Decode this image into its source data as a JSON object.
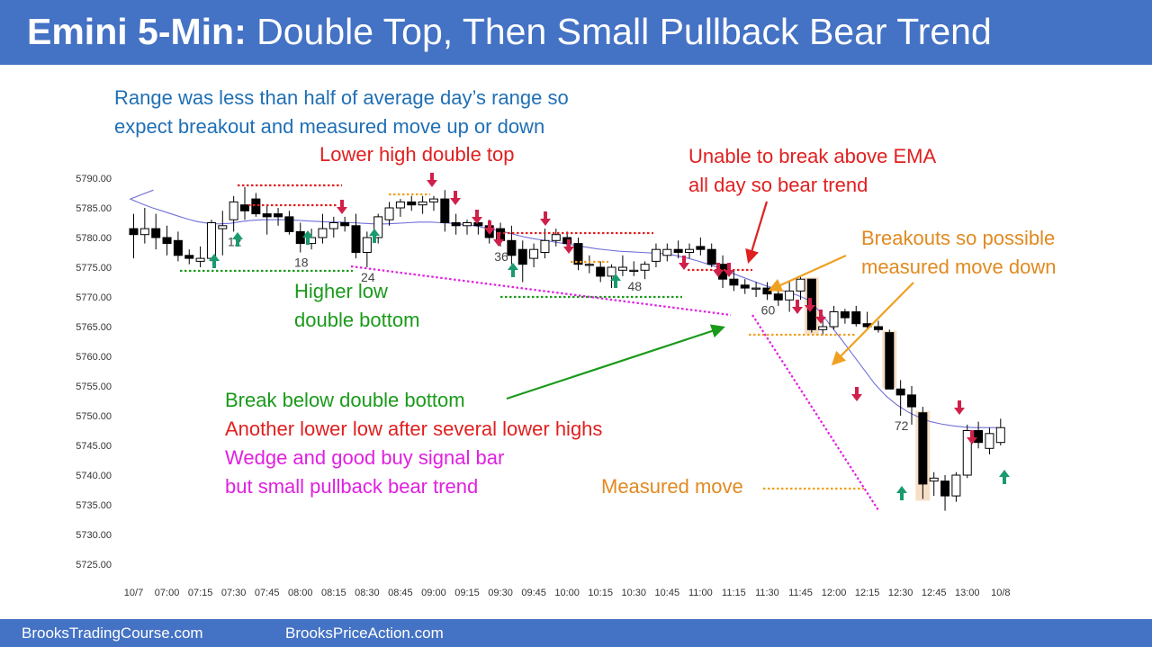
{
  "header": {
    "title_bold": "Emini 5-Min:",
    "title_rest": " Double Top, Then Small Pullback Bear Trend",
    "bg_color": "#4472c4"
  },
  "footer": {
    "left_text": "BrooksTradingCourse.com",
    "right_text": "BrooksPriceAction.com"
  },
  "annotations": {
    "range_note_1": "Range was less than half of average day’s range so",
    "range_note_2": "expect breakout and measured move up or down",
    "lower_high": "Lower high double top",
    "unable_1": "Unable to break above EMA",
    "unable_2": "all day so bear trend",
    "breakouts_1": "Breakouts so possible",
    "breakouts_2": "measured move down",
    "higher_low_1": "Higher low",
    "higher_low_2": "double bottom",
    "break_below": "Break below double bottom",
    "lower_low": "Another lower low after several lower highs",
    "wedge_1": "Wedge and good buy signal bar",
    "wedge_2": "but small pullback bear trend",
    "measured_move": "Measured move"
  },
  "chart_data": {
    "type": "candlestick",
    "symbol": "Emini",
    "timeframe": "5-Min",
    "ylim": [
      5722.5,
      5792.5
    ],
    "yticks": [
      5790,
      5785,
      5780,
      5775,
      5770,
      5765,
      5760,
      5755,
      5750,
      5745,
      5740,
      5735,
      5730,
      5725
    ],
    "ytick_labels": [
      "5790.00",
      "5785.00",
      "5780.00",
      "5775.00",
      "5770.00",
      "5765.00",
      "5760.00",
      "5755.00",
      "5750.00",
      "5745.00",
      "5740.00",
      "5735.00",
      "5730.00",
      "5725.00"
    ],
    "xtick_labels": [
      {
        "bar": 0,
        "label": "10/7"
      },
      {
        "bar": 3,
        "label": "07:00"
      },
      {
        "bar": 6,
        "label": "07:15"
      },
      {
        "bar": 9,
        "label": "07:30"
      },
      {
        "bar": 12,
        "label": "07:45"
      },
      {
        "bar": 15,
        "label": "08:00"
      },
      {
        "bar": 18,
        "label": "08:15"
      },
      {
        "bar": 21,
        "label": "08:30"
      },
      {
        "bar": 24,
        "label": "08:45"
      },
      {
        "bar": 27,
        "label": "09:00"
      },
      {
        "bar": 30,
        "label": "09:15"
      },
      {
        "bar": 33,
        "label": "09:30"
      },
      {
        "bar": 36,
        "label": "09:45"
      },
      {
        "bar": 39,
        "label": "10:00"
      },
      {
        "bar": 42,
        "label": "10:15"
      },
      {
        "bar": 45,
        "label": "10:30"
      },
      {
        "bar": 48,
        "label": "10:45"
      },
      {
        "bar": 51,
        "label": "11:00"
      },
      {
        "bar": 54,
        "label": "11:15"
      },
      {
        "bar": 57,
        "label": "11:30"
      },
      {
        "bar": 60,
        "label": "11:45"
      },
      {
        "bar": 63,
        "label": "12:00"
      },
      {
        "bar": 66,
        "label": "12:15"
      },
      {
        "bar": 69,
        "label": "12:30"
      },
      {
        "bar": 72,
        "label": "12:45"
      },
      {
        "bar": 75,
        "label": "13:00"
      },
      {
        "bar": 78,
        "label": "10/8"
      }
    ],
    "bars": [
      {
        "o": 5781.5,
        "h": 5784.0,
        "l": 5776.5,
        "c": 5780.5
      },
      {
        "o": 5780.5,
        "h": 5785.0,
        "l": 5779.0,
        "c": 5781.5
      },
      {
        "o": 5781.5,
        "h": 5784.0,
        "l": 5778.0,
        "c": 5780.0
      },
      {
        "o": 5780.0,
        "h": 5782.0,
        "l": 5777.0,
        "c": 5779.0
      },
      {
        "o": 5779.5,
        "h": 5781.0,
        "l": 5776.0,
        "c": 5777.0
      },
      {
        "o": 5777.0,
        "h": 5778.0,
        "l": 5775.5,
        "c": 5776.5
      },
      {
        "o": 5776.0,
        "h": 5778.5,
        "l": 5775.0,
        "c": 5776.5
      },
      {
        "o": 5776.5,
        "h": 5783.0,
        "l": 5776.0,
        "c": 5782.5
      },
      {
        "o": 5781.5,
        "h": 5784.5,
        "l": 5777.0,
        "c": 5782.0
      },
      {
        "o": 5783.0,
        "h": 5787.0,
        "l": 5781.0,
        "c": 5786.0
      },
      {
        "o": 5785.5,
        "h": 5788.5,
        "l": 5783.0,
        "c": 5784.5
      },
      {
        "o": 5786.5,
        "h": 5787.5,
        "l": 5783.5,
        "c": 5784.0
      },
      {
        "o": 5784.0,
        "h": 5785.5,
        "l": 5780.5,
        "c": 5783.5
      },
      {
        "o": 5784.0,
        "h": 5785.0,
        "l": 5782.0,
        "c": 5783.5
      },
      {
        "o": 5783.5,
        "h": 5784.5,
        "l": 5780.5,
        "c": 5781.0
      },
      {
        "o": 5781.0,
        "h": 5782.5,
        "l": 5777.5,
        "c": 5779.0
      },
      {
        "o": 5779.0,
        "h": 5781.5,
        "l": 5778.0,
        "c": 5780.0
      },
      {
        "o": 5780.0,
        "h": 5784.0,
        "l": 5779.0,
        "c": 5781.5
      },
      {
        "o": 5781.5,
        "h": 5783.5,
        "l": 5780.0,
        "c": 5782.5
      },
      {
        "o": 5782.5,
        "h": 5783.5,
        "l": 5781.0,
        "c": 5782.0
      },
      {
        "o": 5782.0,
        "h": 5784.0,
        "l": 5776.5,
        "c": 5777.5
      },
      {
        "o": 5777.5,
        "h": 5781.0,
        "l": 5775.0,
        "c": 5780.0
      },
      {
        "o": 5780.0,
        "h": 5784.0,
        "l": 5779.0,
        "c": 5783.5
      },
      {
        "o": 5783.0,
        "h": 5786.0,
        "l": 5782.0,
        "c": 5785.0
      },
      {
        "o": 5785.0,
        "h": 5786.5,
        "l": 5783.5,
        "c": 5786.0
      },
      {
        "o": 5786.0,
        "h": 5787.0,
        "l": 5784.5,
        "c": 5785.5
      },
      {
        "o": 5785.5,
        "h": 5787.0,
        "l": 5784.0,
        "c": 5786.0
      },
      {
        "o": 5786.0,
        "h": 5787.0,
        "l": 5784.5,
        "c": 5786.5
      },
      {
        "o": 5786.5,
        "h": 5788.0,
        "l": 5781.0,
        "c": 5782.5
      },
      {
        "o": 5782.5,
        "h": 5784.0,
        "l": 5780.5,
        "c": 5782.0
      },
      {
        "o": 5782.0,
        "h": 5783.0,
        "l": 5780.5,
        "c": 5782.5
      },
      {
        "o": 5782.5,
        "h": 5783.5,
        "l": 5780.5,
        "c": 5782.0
      },
      {
        "o": 5782.0,
        "h": 5783.0,
        "l": 5779.0,
        "c": 5780.0
      },
      {
        "o": 5781.5,
        "h": 5782.5,
        "l": 5778.5,
        "c": 5779.5
      },
      {
        "o": 5779.5,
        "h": 5782.0,
        "l": 5775.5,
        "c": 5777.0
      },
      {
        "o": 5778.0,
        "h": 5779.5,
        "l": 5772.5,
        "c": 5775.5
      },
      {
        "o": 5776.5,
        "h": 5779.0,
        "l": 5775.0,
        "c": 5778.0
      },
      {
        "o": 5777.5,
        "h": 5781.5,
        "l": 5776.5,
        "c": 5779.5
      },
      {
        "o": 5779.5,
        "h": 5781.5,
        "l": 5778.5,
        "c": 5780.5
      },
      {
        "o": 5780.0,
        "h": 5781.0,
        "l": 5778.0,
        "c": 5779.0
      },
      {
        "o": 5779.0,
        "h": 5780.0,
        "l": 5774.5,
        "c": 5775.5
      },
      {
        "o": 5775.5,
        "h": 5777.0,
        "l": 5774.0,
        "c": 5775.5
      },
      {
        "o": 5775.0,
        "h": 5776.0,
        "l": 5772.5,
        "c": 5773.5
      },
      {
        "o": 5773.5,
        "h": 5775.5,
        "l": 5771.5,
        "c": 5775.0
      },
      {
        "o": 5774.5,
        "h": 5777.0,
        "l": 5773.5,
        "c": 5775.0
      },
      {
        "o": 5774.5,
        "h": 5776.0,
        "l": 5773.5,
        "c": 5774.5
      },
      {
        "o": 5774.5,
        "h": 5776.0,
        "l": 5773.0,
        "c": 5775.5
      },
      {
        "o": 5776.0,
        "h": 5779.0,
        "l": 5775.0,
        "c": 5778.0
      },
      {
        "o": 5777.0,
        "h": 5779.0,
        "l": 5776.0,
        "c": 5778.0
      },
      {
        "o": 5778.0,
        "h": 5779.5,
        "l": 5776.5,
        "c": 5777.5
      },
      {
        "o": 5777.5,
        "h": 5779.0,
        "l": 5776.5,
        "c": 5778.0
      },
      {
        "o": 5778.5,
        "h": 5780.0,
        "l": 5777.0,
        "c": 5778.0
      },
      {
        "o": 5778.0,
        "h": 5779.0,
        "l": 5775.0,
        "c": 5775.5
      },
      {
        "o": 5775.5,
        "h": 5777.0,
        "l": 5771.5,
        "c": 5773.0
      },
      {
        "o": 5773.0,
        "h": 5774.5,
        "l": 5771.0,
        "c": 5772.0
      },
      {
        "o": 5772.0,
        "h": 5773.0,
        "l": 5770.5,
        "c": 5771.5
      },
      {
        "o": 5771.5,
        "h": 5772.5,
        "l": 5770.0,
        "c": 5771.5
      },
      {
        "o": 5771.5,
        "h": 5772.5,
        "l": 5769.5,
        "c": 5770.5
      },
      {
        "o": 5770.5,
        "h": 5772.0,
        "l": 5768.5,
        "c": 5769.5
      },
      {
        "o": 5769.5,
        "h": 5772.5,
        "l": 5767.5,
        "c": 5771.0
      },
      {
        "o": 5771.0,
        "h": 5773.5,
        "l": 5769.5,
        "c": 5773.0
      },
      {
        "o": 5773.0,
        "h": 5773.0,
        "l": 5764.0,
        "c": 5764.5
      },
      {
        "o": 5764.5,
        "h": 5766.0,
        "l": 5763.5,
        "c": 5765.0
      },
      {
        "o": 5765.0,
        "h": 5768.5,
        "l": 5764.5,
        "c": 5767.5
      },
      {
        "o": 5767.5,
        "h": 5768.0,
        "l": 5765.5,
        "c": 5766.5
      },
      {
        "o": 5767.5,
        "h": 5768.5,
        "l": 5765.0,
        "c": 5765.5
      },
      {
        "o": 5765.5,
        "h": 5767.5,
        "l": 5764.5,
        "c": 5765.0
      },
      {
        "o": 5765.0,
        "h": 5766.0,
        "l": 5764.0,
        "c": 5764.5
      },
      {
        "o": 5764.0,
        "h": 5764.5,
        "l": 5755.0,
        "c": 5754.5
      },
      {
        "o": 5754.5,
        "h": 5756.0,
        "l": 5750.0,
        "c": 5753.5
      },
      {
        "o": 5753.5,
        "h": 5755.0,
        "l": 5748.5,
        "c": 5751.5
      },
      {
        "o": 5750.5,
        "h": 5751.5,
        "l": 5736.0,
        "c": 5738.5
      },
      {
        "o": 5739.0,
        "h": 5740.5,
        "l": 5736.5,
        "c": 5739.5
      },
      {
        "o": 5739.0,
        "h": 5740.0,
        "l": 5734.0,
        "c": 5736.5
      },
      {
        "o": 5736.5,
        "h": 5740.5,
        "l": 5735.5,
        "c": 5740.0
      },
      {
        "o": 5740.0,
        "h": 5748.5,
        "l": 5739.5,
        "c": 5747.5
      },
      {
        "o": 5747.5,
        "h": 5749.0,
        "l": 5744.5,
        "c": 5745.5
      },
      {
        "o": 5744.5,
        "h": 5748.0,
        "l": 5743.5,
        "c": 5747.0
      },
      {
        "o": 5745.5,
        "h": 5749.5,
        "l": 5745.0,
        "c": 5748.0
      }
    ],
    "ema": [
      5786.5,
      5785.7,
      5785.0,
      5784.4,
      5783.8,
      5783.2,
      5782.7,
      5782.4,
      5782.3,
      5782.4,
      5782.7,
      5782.9,
      5783.0,
      5783.0,
      5783.0,
      5782.9,
      5782.8,
      5782.7,
      5782.6,
      5782.6,
      5782.5,
      5782.4,
      5782.3,
      5782.3,
      5782.4,
      5782.5,
      5782.6,
      5782.6,
      5782.5,
      5782.4,
      5782.2,
      5782.0,
      5781.6,
      5781.2,
      5780.8,
      5780.3,
      5779.9,
      5779.6,
      5779.3,
      5779.0,
      5778.7,
      5778.4,
      5778.1,
      5777.9,
      5777.7,
      5777.6,
      5777.5,
      5777.4,
      5777.3,
      5777.0,
      5776.6,
      5776.1,
      5775.5,
      5774.9,
      5774.1,
      5773.4,
      5772.7,
      5772.0,
      5771.4,
      5770.9,
      5770.3,
      5769.5,
      5767.6,
      5765.2,
      5762.8,
      5760.3,
      5757.8,
      5755.3,
      5753.3,
      5751.8,
      5750.6,
      5749.7,
      5749.0,
      5748.6,
      5748.3,
      5748.1,
      5748.0,
      5748.0,
      5748.0
    ],
    "bar_numbers": [
      {
        "bar": 9,
        "label": "12"
      },
      {
        "bar": 15,
        "label": "18"
      },
      {
        "bar": 21,
        "label": "24"
      },
      {
        "bar": 33,
        "label": "36"
      },
      {
        "bar": 45,
        "label": "48"
      },
      {
        "bar": 57,
        "label": "60"
      },
      {
        "bar": 69,
        "label": "72"
      }
    ]
  }
}
